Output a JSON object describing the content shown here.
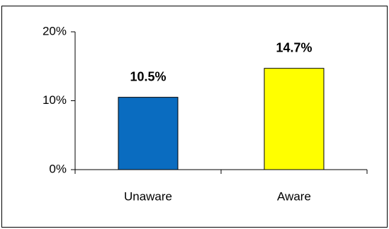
{
  "chart_data": {
    "type": "bar",
    "categories": [
      "Unaware",
      "Aware"
    ],
    "series": [
      {
        "values": [
          10.5,
          14.7
        ],
        "value_labels": [
          "10.5%",
          "14.7%"
        ],
        "colors": [
          "#0a6cc0",
          "#ffff00"
        ]
      }
    ],
    "ylim": [
      0,
      20
    ],
    "yticks": [
      {
        "value": 0,
        "label": "0%"
      },
      {
        "value": 10,
        "label": "10%"
      },
      {
        "value": 20,
        "label": "20%"
      }
    ],
    "grid": false
  }
}
